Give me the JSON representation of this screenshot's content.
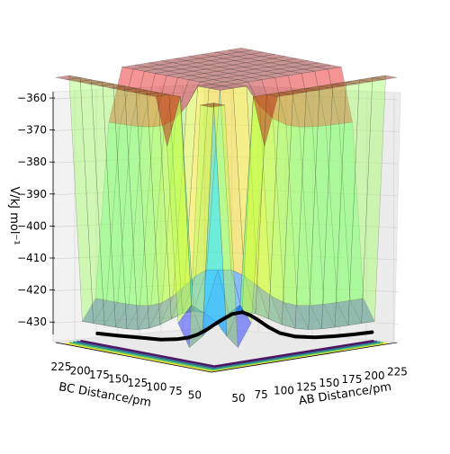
{
  "chart_data": {
    "type": "surface3d",
    "zlabel": "V/kJ mol⁻¹",
    "xlabel": "AB Distance/pm",
    "ylabel": "BC Distance/pm",
    "zticks": [
      "−360",
      "−370",
      "−380",
      "−390",
      "−400",
      "−410",
      "−420",
      "−430"
    ],
    "zlim": [
      -434,
      -359
    ],
    "xticks": [
      "50",
      "75",
      "100",
      "125",
      "150",
      "175",
      "200",
      "225"
    ],
    "yticks": [
      "225",
      "200",
      "175",
      "150",
      "125",
      "100",
      "75",
      "50"
    ],
    "xlim": [
      40,
      240
    ],
    "ylim": [
      40,
      240
    ],
    "colormap": "jet",
    "trajectory": {
      "color": "#000000",
      "points": [
        [
          230,
          60,
          -431.5
        ],
        [
          210,
          60,
          -431.3
        ],
        [
          190,
          61,
          -431.0
        ],
        [
          170,
          62,
          -430.5
        ],
        [
          150,
          63,
          -429.5
        ],
        [
          135,
          65,
          -428
        ],
        [
          125,
          68,
          -426
        ],
        [
          118,
          72,
          -424
        ],
        [
          113,
          77,
          -422.5
        ],
        [
          110,
          84,
          -421.8
        ],
        [
          106,
          92,
          -422.5
        ],
        [
          101,
          98,
          -424
        ],
        [
          96,
          103,
          -425.5
        ],
        [
          92,
          108,
          -427
        ],
        [
          88,
          115,
          -428.5
        ],
        [
          84,
          122,
          -429.5
        ],
        [
          80,
          132,
          -430.2
        ],
        [
          76,
          148,
          -430.8
        ],
        [
          72,
          170,
          -431
        ],
        [
          68,
          195,
          -431.3
        ],
        [
          64,
          215,
          -431.4
        ]
      ]
    }
  }
}
